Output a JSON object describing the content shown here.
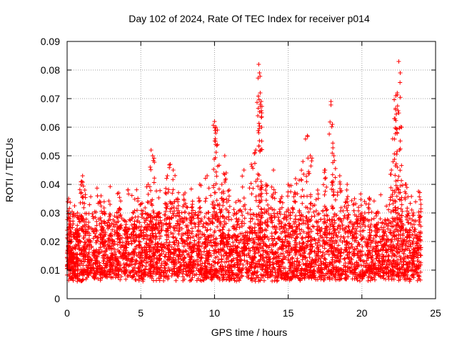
{
  "chart_data": {
    "type": "scatter",
    "title": "Day 102 of 2024, Rate Of TEC Index for receiver p014",
    "xlabel": "GPS time / hours",
    "ylabel": "ROTI / TECUs",
    "xlim": [
      0,
      25
    ],
    "ylim": [
      0,
      0.09
    ],
    "xticks": [
      0,
      5,
      10,
      15,
      20,
      25
    ],
    "yticks": [
      0,
      0.01,
      0.02,
      0.03,
      0.04,
      0.05,
      0.06,
      0.07,
      0.08,
      0.09
    ],
    "xtick_labels": [
      "0",
      "5",
      "10",
      "15",
      "20",
      "25"
    ],
    "ytick_labels": [
      "0",
      "0.01",
      "0.02",
      "0.03",
      "0.04",
      "0.05",
      "0.06",
      "0.07",
      "0.08",
      "0.09"
    ],
    "grid": true,
    "marker": "+",
    "color": "#ff0000",
    "series": [
      {
        "name": "ROTI",
        "description_points": [
          [
            0.05,
            0.012
          ],
          [
            0.1,
            0.035
          ],
          [
            0.15,
            0.028
          ],
          [
            0.2,
            0.02
          ],
          [
            0.3,
            0.015
          ],
          [
            0.5,
            0.018
          ],
          [
            0.8,
            0.022
          ],
          [
            1.0,
            0.041
          ],
          [
            1.05,
            0.043
          ],
          [
            1.2,
            0.038
          ],
          [
            1.5,
            0.025
          ],
          [
            2.0,
            0.027
          ],
          [
            2.3,
            0.036
          ],
          [
            2.5,
            0.03
          ],
          [
            3.0,
            0.022
          ],
          [
            3.5,
            0.037
          ],
          [
            4.0,
            0.026
          ],
          [
            4.5,
            0.03
          ],
          [
            5.0,
            0.024
          ],
          [
            5.5,
            0.04
          ],
          [
            5.7,
            0.052
          ],
          [
            5.8,
            0.05
          ],
          [
            6.2,
            0.03
          ],
          [
            6.8,
            0.043
          ],
          [
            7.0,
            0.047
          ],
          [
            7.2,
            0.045
          ],
          [
            7.5,
            0.035
          ],
          [
            8.0,
            0.037
          ],
          [
            8.5,
            0.033
          ],
          [
            9.0,
            0.04
          ],
          [
            9.5,
            0.043
          ],
          [
            10.0,
            0.062
          ],
          [
            10.1,
            0.06
          ],
          [
            10.2,
            0.059
          ],
          [
            10.5,
            0.04
          ],
          [
            10.7,
            0.05
          ],
          [
            11.0,
            0.038
          ],
          [
            11.5,
            0.03
          ],
          [
            12.0,
            0.045
          ],
          [
            12.5,
            0.047
          ],
          [
            12.8,
            0.052
          ],
          [
            13.0,
            0.082
          ],
          [
            13.05,
            0.079
          ],
          [
            13.1,
            0.072
          ],
          [
            13.1,
            0.068
          ],
          [
            13.2,
            0.06
          ],
          [
            13.5,
            0.04
          ],
          [
            14.0,
            0.045
          ],
          [
            14.5,
            0.035
          ],
          [
            15.0,
            0.04
          ],
          [
            15.5,
            0.042
          ],
          [
            16.0,
            0.048
          ],
          [
            16.3,
            0.057
          ],
          [
            16.5,
            0.05
          ],
          [
            17.0,
            0.038
          ],
          [
            17.5,
            0.045
          ],
          [
            17.9,
            0.069
          ],
          [
            18.0,
            0.061
          ],
          [
            18.1,
            0.05
          ],
          [
            18.5,
            0.043
          ],
          [
            19.0,
            0.04
          ],
          [
            19.5,
            0.035
          ],
          [
            20.0,
            0.03
          ],
          [
            20.5,
            0.035
          ],
          [
            21.0,
            0.03
          ],
          [
            21.5,
            0.025
          ],
          [
            22.0,
            0.045
          ],
          [
            22.2,
            0.063
          ],
          [
            22.3,
            0.071
          ],
          [
            22.4,
            0.072
          ],
          [
            22.5,
            0.083
          ],
          [
            22.6,
            0.079
          ],
          [
            22.7,
            0.06
          ],
          [
            23.0,
            0.04
          ],
          [
            23.5,
            0.03
          ],
          [
            24.0,
            0.033
          ]
        ]
      }
    ]
  }
}
